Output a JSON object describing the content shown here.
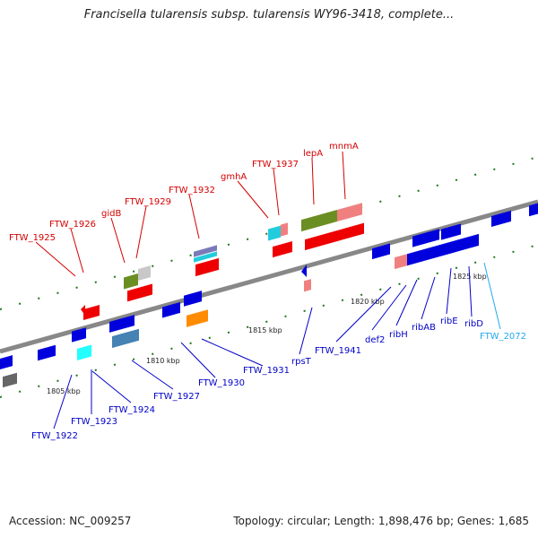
{
  "title": "Francisella tularensis subsp. tularensis WY96-3418, complete...",
  "footer": {
    "accession": "Accession: NC_009257",
    "summary": "Topology: circular; Length: 1,898,476 bp; Genes: 1,685"
  },
  "ticks": [
    "1805 kbp",
    "1810 kbp",
    "1815 kbp",
    "1820 kbp",
    "1825 kbp"
  ],
  "genes_top": [
    "FTW_1925",
    "FTW_1926",
    "gidB",
    "FTW_1929",
    "FTW_1932",
    "gmhA",
    "FTW_1937",
    "lepA",
    "mnmA"
  ],
  "genes_bottom": [
    "FTW_1922",
    "FTW_1923",
    "FTW_1924",
    "FTW_1927",
    "FTW_1930",
    "FTW_1931",
    "rpsT",
    "FTW_1941",
    "def2",
    "ribH",
    "ribAB",
    "ribE",
    "ribD"
  ],
  "gene_other": "FTW_2072",
  "colors": {
    "forward": "#ee0000",
    "reverse": "#0000dd",
    "backbone": "#888888",
    "label_top": "#d40000",
    "label_bottom": "#0000c8",
    "label_other": "#22aaee",
    "dots": "#1c7a1c"
  }
}
